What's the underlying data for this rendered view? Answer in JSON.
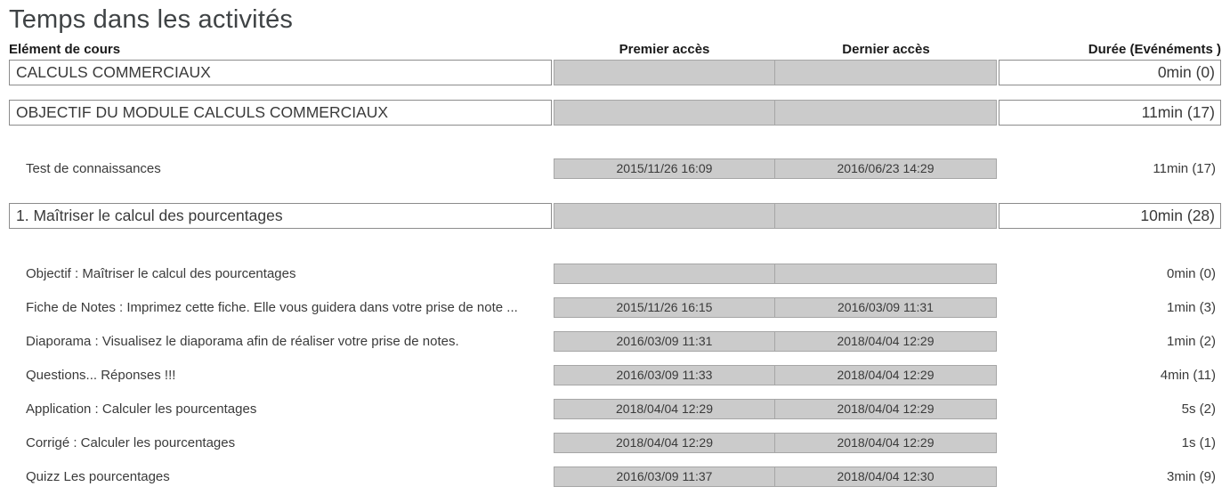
{
  "page": {
    "title": "Temps dans les activités"
  },
  "table": {
    "headers": {
      "course_element": "Elément de cours",
      "first_access": "Premier accès",
      "last_access": "Dernier accès",
      "duration": "Durée (Evénéments )"
    },
    "rows": [
      {
        "type": "section",
        "name": "CALCULS COMMERCIAUX",
        "first_access": "",
        "last_access": "",
        "duration": "0min (0)"
      },
      {
        "type": "section",
        "name": "OBJECTIF DU MODULE CALCULS COMMERCIAUX",
        "first_access": "",
        "last_access": "",
        "duration": "11min (17)"
      },
      {
        "type": "activity",
        "name": "Test de connaissances",
        "first_access": "2015/11/26 16:09",
        "last_access": "2016/06/23 14:29",
        "duration": "11min (17)"
      },
      {
        "type": "section",
        "name": "1. Maîtriser le calcul des pourcentages",
        "first_access": "",
        "last_access": "",
        "duration": "10min (28)"
      },
      {
        "type": "activity",
        "name": "Objectif : Maîtriser le calcul des pourcentages",
        "first_access": "",
        "last_access": "",
        "duration": "0min (0)"
      },
      {
        "type": "activity",
        "name": "Fiche de Notes : Imprimez cette fiche. Elle vous guidera dans votre prise de note ...",
        "first_access": "2015/11/26 16:15",
        "last_access": "2016/03/09 11:31",
        "duration": "1min (3)"
      },
      {
        "type": "activity",
        "name": "Diaporama : Visualisez le diaporama afin de réaliser votre prise de notes.",
        "first_access": "2016/03/09 11:31",
        "last_access": "2018/04/04 12:29",
        "duration": "1min (2)"
      },
      {
        "type": "activity",
        "name": "Questions... Réponses !!!",
        "first_access": "2016/03/09 11:33",
        "last_access": "2018/04/04 12:29",
        "duration": "4min (11)"
      },
      {
        "type": "activity",
        "name": "Application : Calculer les pourcentages",
        "first_access": "2018/04/04 12:29",
        "last_access": "2018/04/04 12:29",
        "duration": "5s (2)"
      },
      {
        "type": "activity",
        "name": "Corrigé : Calculer les pourcentages",
        "first_access": "2018/04/04 12:29",
        "last_access": "2018/04/04 12:29",
        "duration": "1s (1)"
      },
      {
        "type": "activity",
        "name": "Quizz Les pourcentages",
        "first_access": "2016/03/09 11:37",
        "last_access": "2018/04/04 12:30",
        "duration": "3min (9)"
      }
    ]
  },
  "colors": {
    "cell_fill": "#cbcbcb",
    "cell_border": "#a6a6a6",
    "box_border": "#8c8c8c",
    "text": "#3a3a3a",
    "title_text": "#3f4345",
    "header_text": "#1a1a1a"
  }
}
